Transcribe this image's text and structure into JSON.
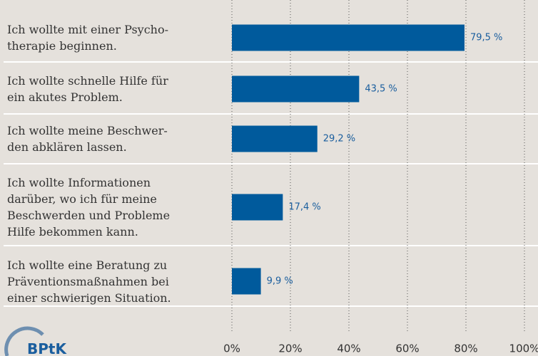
{
  "chart_data": {
    "type": "barh",
    "categories": [
      "Ich wollte mit einer Psycho-\ntherapie beginnen.",
      "Ich wollte schnelle Hilfe für\nein akutes Problem.",
      "Ich wollte meine Beschwer-\nden abklären lassen.",
      "Ich wollte Informationen\ndarüber, wo ich für meine\nBeschwerden und Probleme\nHilfe bekommen kann.",
      "Ich wollte eine Beratung zu\nPräventionsmaßnahmen bei\neiner schwierigen Situation."
    ],
    "values": [
      79.5,
      43.5,
      29.2,
      17.4,
      9.9
    ],
    "value_labels": [
      "79,5 %",
      "43,5 %",
      "29,2 %",
      "17,4 %",
      "9,9 %"
    ],
    "color": "#005a9c",
    "xlim": [
      0,
      100
    ],
    "xticks": [
      {
        "value": 0,
        "label": "0%"
      },
      {
        "value": 20,
        "label": "20%"
      },
      {
        "value": 40,
        "label": "40%"
      },
      {
        "value": 60,
        "label": "60%"
      },
      {
        "value": 80,
        "label": "80%"
      },
      {
        "value": 100,
        "label": "100%"
      }
    ],
    "grid": true,
    "logo": "BPtK"
  }
}
